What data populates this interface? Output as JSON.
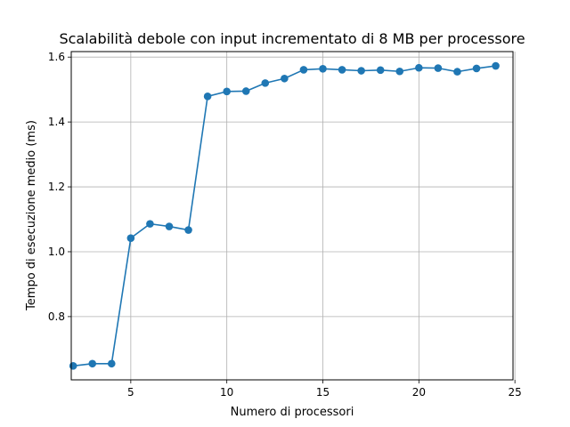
{
  "chart_data": {
    "type": "line",
    "title": "Scalabilità debole con input incrementato di 8 MB per processore",
    "xlabel": "Numero di processori",
    "ylabel": "Tempo di esecuzione medio (ms)",
    "xlim": [
      1.9,
      24.9
    ],
    "ylim": [
      0.605,
      1.617
    ],
    "xticks": [
      5,
      10,
      15,
      20,
      25
    ],
    "yticks": [
      0.8,
      1.0,
      1.2,
      1.4,
      1.6
    ],
    "xtick_labels": [
      "5",
      "10",
      "15",
      "20",
      "25"
    ],
    "ytick_labels": [
      "0.8",
      "1.0",
      "1.2",
      "1.4",
      "1.6"
    ],
    "grid": true,
    "color": "#1f77b4",
    "marker": "circle",
    "series": [
      {
        "x": [
          2,
          3,
          4,
          5,
          6,
          7,
          8,
          9,
          10,
          11,
          12,
          13,
          14,
          15,
          16,
          17,
          18,
          19,
          20,
          21,
          22,
          23,
          24
        ],
        "values": [
          0.648,
          0.655,
          0.655,
          1.042,
          1.086,
          1.078,
          1.067,
          1.479,
          1.494,
          1.495,
          1.52,
          1.534,
          1.561,
          1.564,
          1.561,
          1.558,
          1.56,
          1.556,
          1.567,
          1.566,
          1.555,
          1.565,
          1.573
        ]
      }
    ]
  }
}
